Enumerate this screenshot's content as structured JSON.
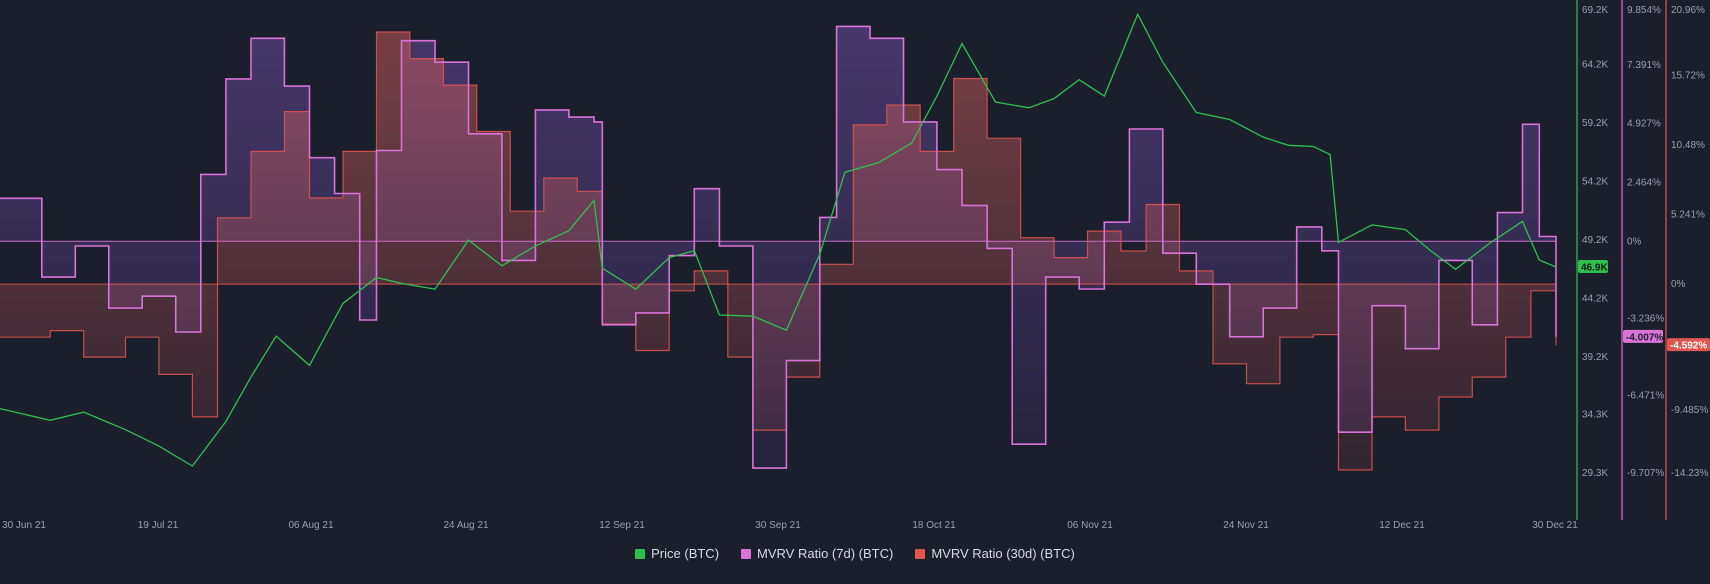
{
  "chart_data": {
    "type": "line",
    "title": "",
    "x_range": [
      "2021-06-27",
      "2021-12-30"
    ],
    "x_ticks": [
      "30 Jun 21",
      "19 Jul 21",
      "06 Aug 21",
      "24 Aug 21",
      "12 Sep 21",
      "30 Sep 21",
      "18 Oct 21",
      "06 Nov 21",
      "24 Nov 21",
      "12 Dec 21",
      "30 Dec 21"
    ],
    "axes": {
      "price": {
        "ticks": [
          "69.2K",
          "64.2K",
          "59.2K",
          "54.2K",
          "49.2K",
          "44.2K",
          "39.2K",
          "34.3K",
          "29.3K"
        ],
        "range": [
          29300,
          69200
        ],
        "color": "#2fbf4f"
      },
      "mvrv_7d": {
        "ticks": [
          "9.854%",
          "7.391%",
          "4.927%",
          "2.464%",
          "0%",
          "-3.236%",
          "-6.471%",
          "-9.707%"
        ],
        "range": [
          -9.707,
          9.854
        ],
        "color": "#d873d8"
      },
      "mvrv_30d": {
        "ticks": [
          "20.96%",
          "15.72%",
          "10.48%",
          "5.241%",
          "0%",
          "-9.485%",
          "-14.23%"
        ],
        "range": [
          -14.23,
          20.96
        ],
        "color": "#e0554f"
      }
    },
    "current": {
      "price": "46.9K",
      "mvrv_7d": "-4.007%",
      "mvrv_30d": "-4.592%"
    },
    "series": [
      {
        "name": "Price (BTC)",
        "color": "#2fbf4f",
        "axis": "price",
        "points": [
          [
            "2021-06-27",
            34800
          ],
          [
            "2021-07-03",
            33800
          ],
          [
            "2021-07-07",
            34500
          ],
          [
            "2021-07-12",
            33000
          ],
          [
            "2021-07-16",
            31600
          ],
          [
            "2021-07-20",
            29900
          ],
          [
            "2021-07-24",
            33700
          ],
          [
            "2021-07-27",
            37500
          ],
          [
            "2021-07-30",
            41000
          ],
          [
            "2021-08-03",
            38500
          ],
          [
            "2021-08-07",
            43800
          ],
          [
            "2021-08-11",
            46000
          ],
          [
            "2021-08-14",
            45500
          ],
          [
            "2021-08-18",
            45000
          ],
          [
            "2021-08-22",
            49200
          ],
          [
            "2021-08-26",
            47000
          ],
          [
            "2021-08-30",
            48700
          ],
          [
            "2021-09-03",
            50000
          ],
          [
            "2021-09-06",
            52600
          ],
          [
            "2021-09-07",
            46800
          ],
          [
            "2021-09-11",
            45000
          ],
          [
            "2021-09-15",
            47700
          ],
          [
            "2021-09-18",
            48300
          ],
          [
            "2021-09-21",
            42800
          ],
          [
            "2021-09-25",
            42700
          ],
          [
            "2021-09-29",
            41500
          ],
          [
            "2021-10-03",
            48000
          ],
          [
            "2021-10-06",
            55000
          ],
          [
            "2021-10-10",
            55800
          ],
          [
            "2021-10-14",
            57500
          ],
          [
            "2021-10-17",
            61500
          ],
          [
            "2021-10-20",
            66000
          ],
          [
            "2021-10-24",
            61000
          ],
          [
            "2021-10-28",
            60500
          ],
          [
            "2021-10-31",
            61300
          ],
          [
            "2021-11-03",
            62900
          ],
          [
            "2021-11-06",
            61500
          ],
          [
            "2021-11-10",
            68500
          ],
          [
            "2021-11-13",
            64400
          ],
          [
            "2021-11-17",
            60100
          ],
          [
            "2021-11-21",
            59500
          ],
          [
            "2021-11-25",
            58000
          ],
          [
            "2021-11-28",
            57300
          ],
          [
            "2021-12-01",
            57200
          ],
          [
            "2021-12-03",
            56500
          ],
          [
            "2021-12-04",
            49000
          ],
          [
            "2021-12-08",
            50500
          ],
          [
            "2021-12-12",
            50100
          ],
          [
            "2021-12-15",
            48300
          ],
          [
            "2021-12-18",
            46700
          ],
          [
            "2021-12-22",
            48900
          ],
          [
            "2021-12-26",
            50800
          ],
          [
            "2021-12-28",
            47500
          ],
          [
            "2021-12-30",
            46900
          ]
        ]
      },
      {
        "name": "MVRV Ratio (7d) (BTC)",
        "color": "#d873d8",
        "axis": "mvrv_7d",
        "points": [
          [
            "2021-06-27",
            1.8
          ],
          [
            "2021-07-02",
            -1.5
          ],
          [
            "2021-07-06",
            -0.2
          ],
          [
            "2021-07-10",
            -2.8
          ],
          [
            "2021-07-14",
            -2.3
          ],
          [
            "2021-07-18",
            -3.8
          ],
          [
            "2021-07-21",
            2.8
          ],
          [
            "2021-07-24",
            6.8
          ],
          [
            "2021-07-27",
            8.5
          ],
          [
            "2021-07-31",
            6.5
          ],
          [
            "2021-08-03",
            3.5
          ],
          [
            "2021-08-06",
            2.0
          ],
          [
            "2021-08-09",
            -3.3
          ],
          [
            "2021-08-11",
            3.8
          ],
          [
            "2021-08-14",
            8.4
          ],
          [
            "2021-08-18",
            7.5
          ],
          [
            "2021-08-22",
            4.5
          ],
          [
            "2021-08-26",
            -0.8
          ],
          [
            "2021-08-30",
            5.5
          ],
          [
            "2021-09-03",
            5.2
          ],
          [
            "2021-09-06",
            5.0
          ],
          [
            "2021-09-07",
            -3.5
          ],
          [
            "2021-09-11",
            -3.0
          ],
          [
            "2021-09-15",
            -0.6
          ],
          [
            "2021-09-18",
            2.2
          ],
          [
            "2021-09-21",
            -0.2
          ],
          [
            "2021-09-25",
            -9.5
          ],
          [
            "2021-09-29",
            -5.0
          ],
          [
            "2021-10-03",
            1.0
          ],
          [
            "2021-10-05",
            9.0
          ],
          [
            "2021-10-09",
            8.5
          ],
          [
            "2021-10-13",
            5.0
          ],
          [
            "2021-10-17",
            3.0
          ],
          [
            "2021-10-20",
            1.5
          ],
          [
            "2021-10-23",
            -0.3
          ],
          [
            "2021-10-26",
            -8.5
          ],
          [
            "2021-10-30",
            -1.5
          ],
          [
            "2021-11-03",
            -2.0
          ],
          [
            "2021-11-06",
            0.8
          ],
          [
            "2021-11-09",
            4.7
          ],
          [
            "2021-11-13",
            -0.5
          ],
          [
            "2021-11-17",
            -1.8
          ],
          [
            "2021-11-21",
            -4.0
          ],
          [
            "2021-11-25",
            -2.8
          ],
          [
            "2021-11-29",
            0.6
          ],
          [
            "2021-12-02",
            -0.4
          ],
          [
            "2021-12-04",
            -8.0
          ],
          [
            "2021-12-08",
            -2.7
          ],
          [
            "2021-12-12",
            -4.5
          ],
          [
            "2021-12-16",
            -0.8
          ],
          [
            "2021-12-20",
            -3.5
          ],
          [
            "2021-12-23",
            1.2
          ],
          [
            "2021-12-26",
            4.9
          ],
          [
            "2021-12-28",
            0.2
          ],
          [
            "2021-12-30",
            -4.0
          ]
        ]
      },
      {
        "name": "MVRV Ratio (30d) (BTC)",
        "color": "#e0554f",
        "axis": "mvrv_30d",
        "points": [
          [
            "2021-06-27",
            -4.0
          ],
          [
            "2021-07-03",
            -3.5
          ],
          [
            "2021-07-07",
            -5.5
          ],
          [
            "2021-07-12",
            -4.0
          ],
          [
            "2021-07-16",
            -6.8
          ],
          [
            "2021-07-20",
            -10.0
          ],
          [
            "2021-07-23",
            5.0
          ],
          [
            "2021-07-27",
            10.0
          ],
          [
            "2021-07-31",
            13.0
          ],
          [
            "2021-08-03",
            6.5
          ],
          [
            "2021-08-07",
            10.0
          ],
          [
            "2021-08-11",
            19.0
          ],
          [
            "2021-08-15",
            17.0
          ],
          [
            "2021-08-19",
            15.0
          ],
          [
            "2021-08-23",
            11.5
          ],
          [
            "2021-08-27",
            5.5
          ],
          [
            "2021-08-31",
            8.0
          ],
          [
            "2021-09-04",
            7.0
          ],
          [
            "2021-09-07",
            -3.0
          ],
          [
            "2021-09-11",
            -5.0
          ],
          [
            "2021-09-15",
            -0.5
          ],
          [
            "2021-09-18",
            1.0
          ],
          [
            "2021-09-22",
            -5.5
          ],
          [
            "2021-09-25",
            -11.0
          ],
          [
            "2021-09-29",
            -7.0
          ],
          [
            "2021-10-03",
            1.5
          ],
          [
            "2021-10-07",
            12.0
          ],
          [
            "2021-10-11",
            13.5
          ],
          [
            "2021-10-15",
            10.0
          ],
          [
            "2021-10-19",
            15.5
          ],
          [
            "2021-10-23",
            11.0
          ],
          [
            "2021-10-27",
            3.5
          ],
          [
            "2021-10-31",
            2.0
          ],
          [
            "2021-11-04",
            4.0
          ],
          [
            "2021-11-08",
            2.5
          ],
          [
            "2021-11-11",
            6.0
          ],
          [
            "2021-11-15",
            1.0
          ],
          [
            "2021-11-19",
            -6.0
          ],
          [
            "2021-11-23",
            -7.5
          ],
          [
            "2021-11-27",
            -4.0
          ],
          [
            "2021-12-01",
            -3.8
          ],
          [
            "2021-12-04",
            -14.0
          ],
          [
            "2021-12-08",
            -10.0
          ],
          [
            "2021-12-12",
            -11.0
          ],
          [
            "2021-12-16",
            -8.5
          ],
          [
            "2021-12-20",
            -7.0
          ],
          [
            "2021-12-24",
            -4.0
          ],
          [
            "2021-12-27",
            -0.5
          ],
          [
            "2021-12-30",
            -4.6
          ]
        ]
      }
    ],
    "legend_position": "bottom-center",
    "grid": false
  }
}
